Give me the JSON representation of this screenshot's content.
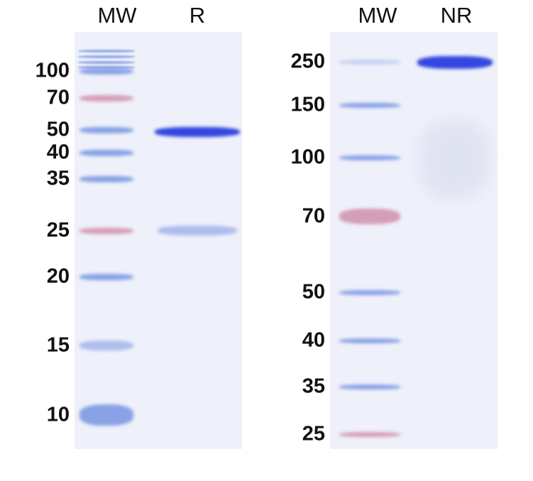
{
  "left_gel": {
    "lane_labels": [
      "MW",
      "R"
    ],
    "markers": [
      "100",
      "70",
      "50",
      "40",
      "35",
      "25",
      "20",
      "15",
      "10"
    ],
    "sample_bands_kDa": [
      50,
      25
    ]
  },
  "right_gel": {
    "lane_labels": [
      "MW",
      "NR"
    ],
    "markers": [
      "250",
      "150",
      "100",
      "70",
      "50",
      "40",
      "35",
      "25"
    ],
    "sample_bands_kDa": [
      250
    ]
  },
  "colors": {
    "blue_band": "#3346e0",
    "marker_blue": "#6f8fe0",
    "marker_pink": "#d08aa8",
    "gel_background": "#eef0fa"
  }
}
